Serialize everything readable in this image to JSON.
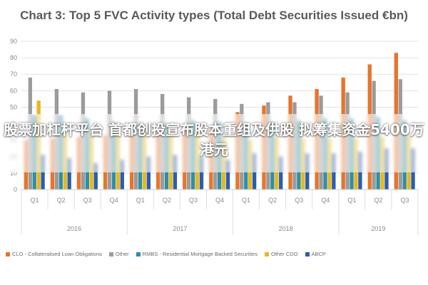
{
  "chart_data": {
    "type": "bar",
    "title": "Chart 3: Top 5 FVC Activity types (Total Debt Securities Issued €bn)",
    "xlabel": "",
    "ylabel": "",
    "ylim": [
      0,
      90
    ],
    "yticks": [
      0,
      10,
      20,
      30,
      40,
      50,
      60,
      70,
      80,
      90
    ],
    "grid": true,
    "legend_placement": "bottom",
    "categories": [
      "Q1",
      "Q2",
      "Q3",
      "Q4",
      "Q1",
      "Q2",
      "Q3",
      "Q4",
      "Q1",
      "Q2",
      "Q3",
      "Q4",
      "Q1",
      "Q2",
      "Q3"
    ],
    "year_groups": [
      {
        "label": "2016",
        "quarters": 4
      },
      {
        "label": "2017",
        "quarters": 4
      },
      {
        "label": "2018",
        "quarters": 4
      },
      {
        "label": "2019",
        "quarters": 3
      }
    ],
    "series": [
      {
        "name": "CLO - Collateralised Loan Obligations",
        "color": "#e8742a",
        "values": [
          30,
          31,
          32,
          33,
          34,
          35,
          36,
          37,
          47,
          51,
          57,
          61,
          68,
          76,
          83
        ]
      },
      {
        "name": "Other",
        "color": "#9b9b9b",
        "values": [
          68,
          61,
          59,
          60,
          61,
          58,
          56,
          55,
          52,
          53,
          53,
          57,
          59,
          66,
          67
        ]
      },
      {
        "name": "RMBS - Residential Mortgage Backed Securities",
        "color": "#2e8fa6",
        "values": [
          45,
          45,
          43,
          41,
          40,
          40,
          42,
          41,
          40,
          41,
          42,
          43,
          43,
          44,
          42
        ]
      },
      {
        "name": "Other CDO",
        "color": "#e6b820",
        "values": [
          54,
          36,
          35,
          40,
          38,
          38,
          35,
          32,
          30,
          32,
          31,
          31,
          31,
          32,
          33
        ]
      },
      {
        "name": "ABCP",
        "color": "#2a5db0",
        "values": [
          21,
          19,
          16,
          18,
          20,
          21,
          20,
          18,
          22,
          20,
          22,
          22,
          23,
          25,
          25
        ]
      }
    ]
  },
  "overlay": {
    "text": "股票加杠杆平台 首都创投宣布股本重组及供股 拟筹集资金5400万港元"
  }
}
